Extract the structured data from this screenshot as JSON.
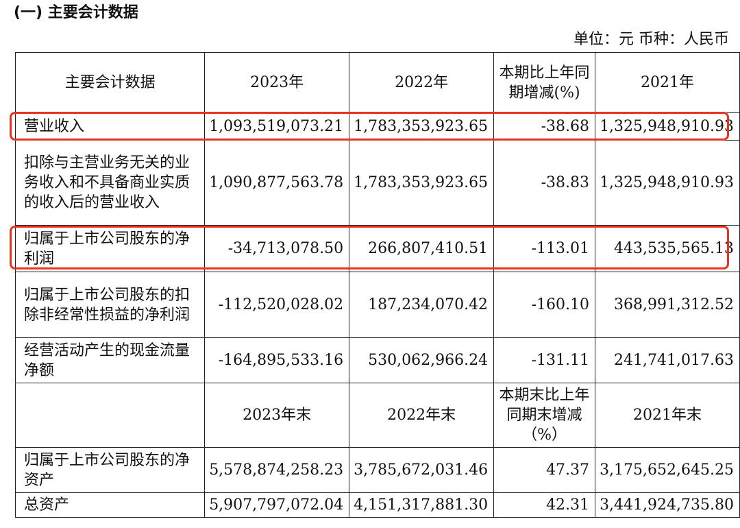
{
  "section_title": "(一) 主要会计数据",
  "unit_line": "单位：元 币种：人民币",
  "highlight_color": "#e8321f",
  "header1": [
    "主要会计数据",
    "2023年",
    "2022年",
    "本期比上年同期增减(%)",
    "2021年"
  ],
  "rows1": [
    {
      "label": "营业收入",
      "v2023": "1,093,519,073.21",
      "v2022": "1,783,353,923.65",
      "chg": "-38.68",
      "v2021": "1,325,948,910.93",
      "highlighted": true
    },
    {
      "label": "扣除与主营业务无关的业务收入和不具备商业实质的收入后的营业收入",
      "v2023": "1,090,877,563.78",
      "v2022": "1,783,353,923.65",
      "chg": "-38.83",
      "v2021": "1,325,948,910.93",
      "highlighted": false
    },
    {
      "label": "归属于上市公司股东的净利润",
      "v2023": "-34,713,078.50",
      "v2022": "266,807,410.51",
      "chg": "-113.01",
      "v2021": "443,535,565.13",
      "highlighted": true
    },
    {
      "label": "归属于上市公司股东的扣除非经常性损益的净利润",
      "v2023": "-112,520,028.02",
      "v2022": "187,234,070.42",
      "chg": "-160.10",
      "v2021": "368,991,312.52",
      "highlighted": false
    },
    {
      "label": "经营活动产生的现金流量净额",
      "v2023": "-164,895,533.16",
      "v2022": "530,062,966.24",
      "chg": "-131.11",
      "v2021": "241,741,017.63",
      "highlighted": false
    }
  ],
  "header2": [
    "",
    "2023年末",
    "2022年末",
    "本期末比上年同期末增减（%）",
    "2021年末"
  ],
  "rows2": [
    {
      "label": "归属于上市公司股东的净资产",
      "v2023": "5,578,874,258.23",
      "v2022": "3,785,672,031.46",
      "chg": "47.37",
      "v2021": "3,175,652,645.25"
    },
    {
      "label": "总资产",
      "v2023": "5,907,797,072.04",
      "v2022": "4,151,317,881.30",
      "chg": "42.31",
      "v2021": "3,441,924,735.80"
    }
  ]
}
